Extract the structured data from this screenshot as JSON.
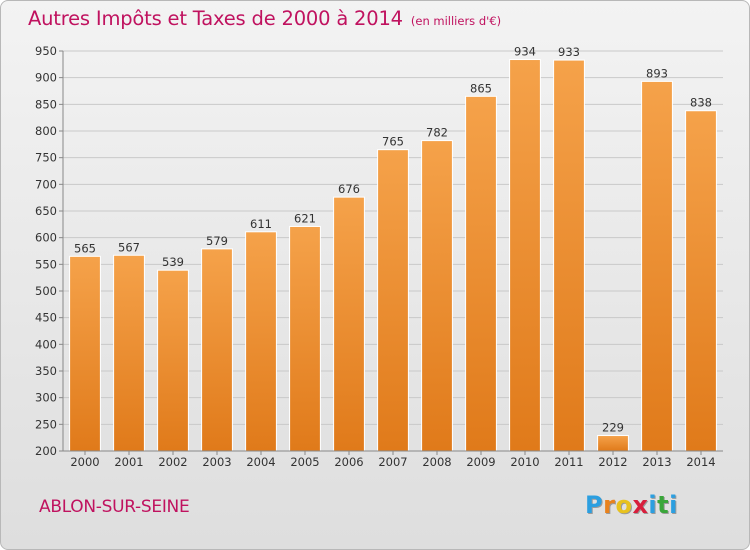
{
  "title": {
    "main": "Autres Impôts et Taxes de 2000 à 2014",
    "unit": "(en milliers d'€)"
  },
  "commune": "ABLON-SUR-SEINE",
  "brand": {
    "letters": [
      "P",
      "r",
      "o",
      "x",
      "i",
      "t",
      "i"
    ],
    "colors": [
      "#2c9fe0",
      "#e8821e",
      "#e8c21e",
      "#d81e3c",
      "#2c9fe0",
      "#3aa63a",
      "#2c9fe0"
    ]
  },
  "colors": {
    "bar_top": "#f5a24a",
    "bar_bottom": "#e07a1a",
    "grid": "#c9c9c9",
    "axis": "#888888"
  },
  "chart_data": {
    "type": "bar",
    "categories": [
      "2000",
      "2001",
      "2002",
      "2003",
      "2004",
      "2005",
      "2006",
      "2007",
      "2008",
      "2009",
      "2010",
      "2011",
      "2012",
      "2013",
      "2014"
    ],
    "values": [
      565,
      567,
      539,
      579,
      611,
      621,
      676,
      765,
      782,
      865,
      934,
      933,
      229,
      893,
      838
    ],
    "title": "Autres Impôts et Taxes de 2000 à 2014",
    "xlabel": "",
    "ylabel": "",
    "ylim": [
      200,
      950
    ],
    "yticks": [
      200,
      250,
      300,
      350,
      400,
      450,
      500,
      550,
      600,
      650,
      700,
      750,
      800,
      850,
      900,
      950
    ],
    "grid": true,
    "legend": "none"
  }
}
